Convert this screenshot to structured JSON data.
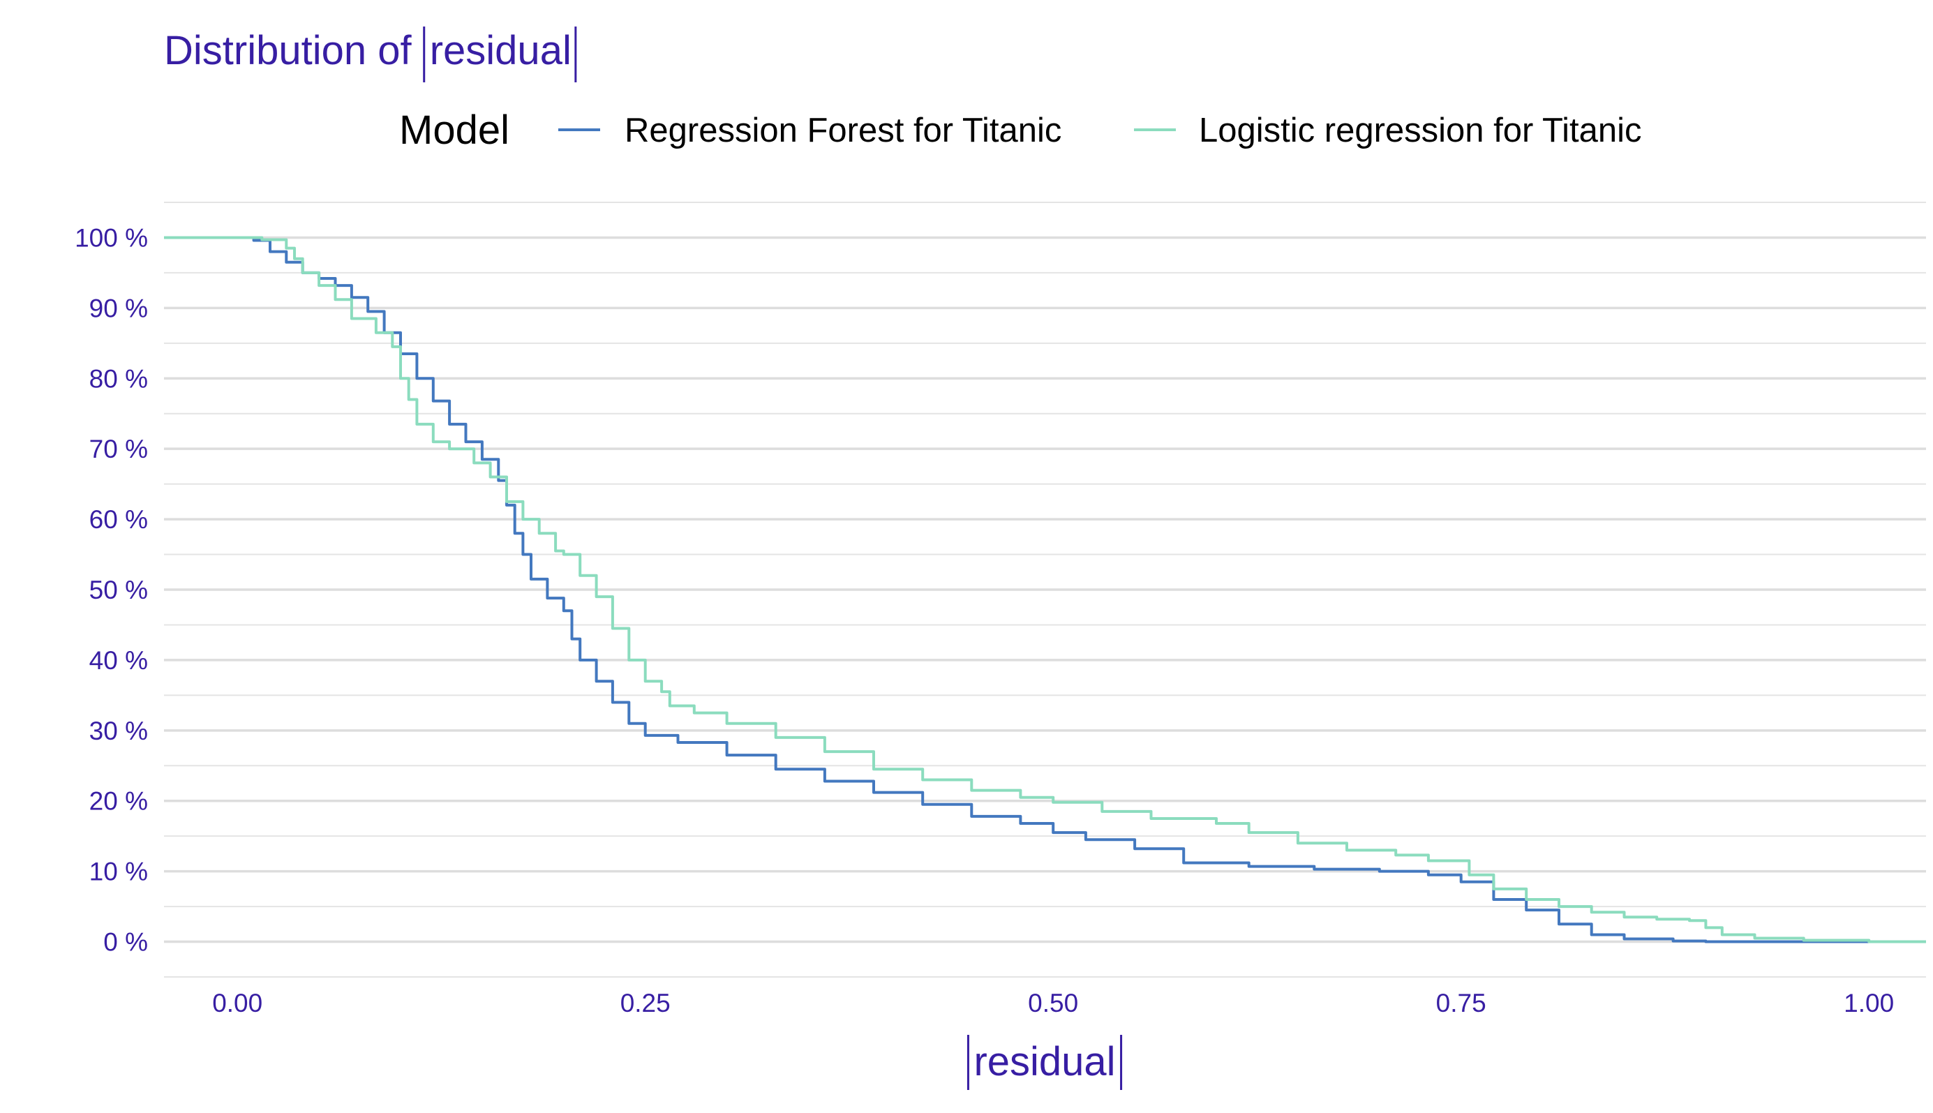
{
  "colors": {
    "text": "#371ea3",
    "series_forest": "#4378bf",
    "series_logistic": "#8bdcbe",
    "grid": "#dddddd"
  },
  "chart_data": {
    "type": "line",
    "title_prefix": "Distribution of ",
    "title_abs": "residual",
    "legend_title": "Model",
    "legend_position": "top",
    "xlabel_abs": "residual",
    "ylabel": "",
    "xlim": [
      -0.045,
      1.035
    ],
    "ylim": [
      -5,
      105
    ],
    "x_ticks": [
      0.0,
      0.25,
      0.5,
      0.75,
      1.0
    ],
    "x_tick_labels": [
      "0.00",
      "0.25",
      "0.50",
      "0.75",
      "1.00"
    ],
    "y_ticks": [
      0,
      10,
      20,
      30,
      40,
      50,
      60,
      70,
      80,
      90,
      100
    ],
    "y_tick_labels": [
      "0 %",
      "10 %",
      "20 %",
      "30 %",
      "40 %",
      "50 %",
      "60 %",
      "70 %",
      "80 %",
      "90 %",
      "100 %"
    ],
    "grid": true,
    "series": [
      {
        "name": "Regression Forest for Titanic",
        "color": "#4378bf",
        "points": [
          [
            -0.045,
            100
          ],
          [
            0.0,
            100
          ],
          [
            0.01,
            99.6
          ],
          [
            0.02,
            98.0
          ],
          [
            0.03,
            96.5
          ],
          [
            0.04,
            95.0
          ],
          [
            0.05,
            94.2
          ],
          [
            0.06,
            93.2
          ],
          [
            0.07,
            91.5
          ],
          [
            0.08,
            89.5
          ],
          [
            0.09,
            86.5
          ],
          [
            0.1,
            83.5
          ],
          [
            0.11,
            80.0
          ],
          [
            0.12,
            76.8
          ],
          [
            0.13,
            73.5
          ],
          [
            0.14,
            71.0
          ],
          [
            0.15,
            68.5
          ],
          [
            0.16,
            65.5
          ],
          [
            0.165,
            62.0
          ],
          [
            0.17,
            58.0
          ],
          [
            0.175,
            55.0
          ],
          [
            0.18,
            51.5
          ],
          [
            0.19,
            48.8
          ],
          [
            0.2,
            47.0
          ],
          [
            0.205,
            43.0
          ],
          [
            0.21,
            40.0
          ],
          [
            0.22,
            37.0
          ],
          [
            0.23,
            34.0
          ],
          [
            0.24,
            31.0
          ],
          [
            0.25,
            29.3
          ],
          [
            0.27,
            28.3
          ],
          [
            0.3,
            26.5
          ],
          [
            0.33,
            24.5
          ],
          [
            0.36,
            22.8
          ],
          [
            0.39,
            21.2
          ],
          [
            0.42,
            19.5
          ],
          [
            0.45,
            17.8
          ],
          [
            0.48,
            16.8
          ],
          [
            0.5,
            15.5
          ],
          [
            0.52,
            14.5
          ],
          [
            0.55,
            13.2
          ],
          [
            0.58,
            11.2
          ],
          [
            0.62,
            10.7
          ],
          [
            0.66,
            10.3
          ],
          [
            0.7,
            10.0
          ],
          [
            0.73,
            9.5
          ],
          [
            0.75,
            8.5
          ],
          [
            0.77,
            6.0
          ],
          [
            0.79,
            4.5
          ],
          [
            0.81,
            2.5
          ],
          [
            0.83,
            1.0
          ],
          [
            0.85,
            0.4
          ],
          [
            0.88,
            0.1
          ],
          [
            0.9,
            0.0
          ],
          [
            1.035,
            0.0
          ]
        ]
      },
      {
        "name": "Logistic regression for Titanic",
        "color": "#8bdcbe",
        "points": [
          [
            -0.045,
            100
          ],
          [
            0.0,
            100
          ],
          [
            0.015,
            99.7
          ],
          [
            0.03,
            98.5
          ],
          [
            0.035,
            97.0
          ],
          [
            0.04,
            95.0
          ],
          [
            0.05,
            93.2
          ],
          [
            0.06,
            91.2
          ],
          [
            0.07,
            88.5
          ],
          [
            0.085,
            86.5
          ],
          [
            0.095,
            84.5
          ],
          [
            0.1,
            80.0
          ],
          [
            0.105,
            77.0
          ],
          [
            0.11,
            73.5
          ],
          [
            0.12,
            71.0
          ],
          [
            0.13,
            70.0
          ],
          [
            0.145,
            68.0
          ],
          [
            0.155,
            66.0
          ],
          [
            0.165,
            62.5
          ],
          [
            0.175,
            60.0
          ],
          [
            0.185,
            58.0
          ],
          [
            0.195,
            55.5
          ],
          [
            0.2,
            55.0
          ],
          [
            0.21,
            52.0
          ],
          [
            0.22,
            49.0
          ],
          [
            0.23,
            44.5
          ],
          [
            0.24,
            40.0
          ],
          [
            0.25,
            37.0
          ],
          [
            0.26,
            35.5
          ],
          [
            0.265,
            33.5
          ],
          [
            0.28,
            32.5
          ],
          [
            0.3,
            31.0
          ],
          [
            0.33,
            29.0
          ],
          [
            0.36,
            27.0
          ],
          [
            0.39,
            24.5
          ],
          [
            0.42,
            23.0
          ],
          [
            0.45,
            21.5
          ],
          [
            0.48,
            20.5
          ],
          [
            0.5,
            19.8
          ],
          [
            0.53,
            18.5
          ],
          [
            0.56,
            17.5
          ],
          [
            0.6,
            16.8
          ],
          [
            0.62,
            15.5
          ],
          [
            0.65,
            14.0
          ],
          [
            0.68,
            13.0
          ],
          [
            0.71,
            12.3
          ],
          [
            0.73,
            11.5
          ],
          [
            0.755,
            9.5
          ],
          [
            0.77,
            7.5
          ],
          [
            0.79,
            6.0
          ],
          [
            0.81,
            5.0
          ],
          [
            0.83,
            4.2
          ],
          [
            0.85,
            3.5
          ],
          [
            0.87,
            3.2
          ],
          [
            0.89,
            3.0
          ],
          [
            0.9,
            2.0
          ],
          [
            0.91,
            1.0
          ],
          [
            0.93,
            0.5
          ],
          [
            0.96,
            0.2
          ],
          [
            1.0,
            0.0
          ],
          [
            1.035,
            0.0
          ]
        ]
      }
    ]
  }
}
